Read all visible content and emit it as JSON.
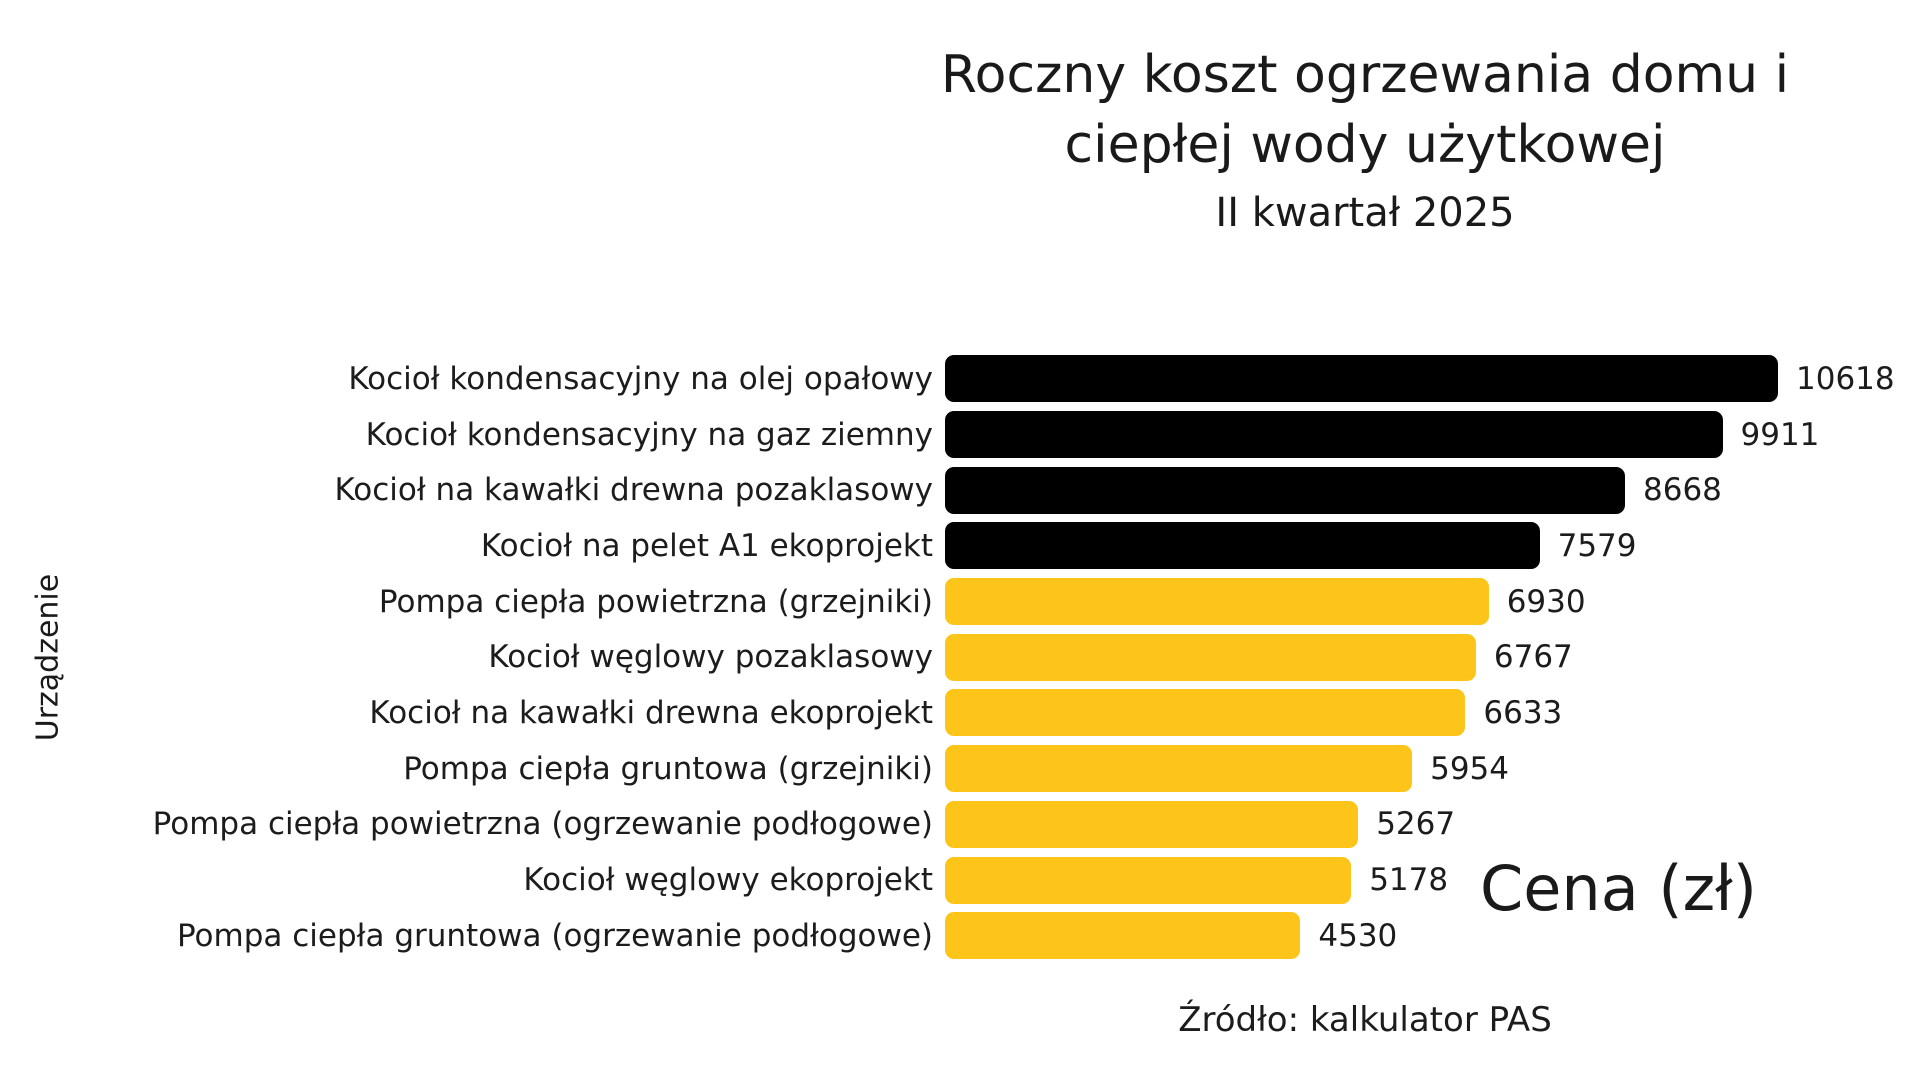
{
  "header": {
    "title_line1": "Roczny koszt ogrzewania domu i",
    "title_line2": "ciepłej wody użytkowej",
    "subtitle": "II kwartał 2025"
  },
  "chart_data": {
    "type": "bar",
    "orientation": "horizontal",
    "title": "Roczny koszt ogrzewania domu i ciepłej wody użytkowej",
    "subtitle": "II kwartał 2025",
    "xlabel": "Cena (zł)",
    "ylabel": "Urządzenie",
    "source": "Źródło: kalkulator PAS",
    "xlim": [
      0,
      10618
    ],
    "grid": false,
    "legend": false,
    "bar_colors": {
      "dark": "#000000",
      "yellow": "#fdc51a"
    },
    "items": [
      {
        "label": "Kocioł kondensacyjny na olej opałowy",
        "value": 10618,
        "color": "#000000"
      },
      {
        "label": "Kocioł kondensacyjny na gaz ziemny",
        "value": 9911,
        "color": "#000000"
      },
      {
        "label": "Kocioł na kawałki drewna pozaklasowy",
        "value": 8668,
        "color": "#000000"
      },
      {
        "label": "Kocioł na pelet A1 ekoprojekt",
        "value": 7579,
        "color": "#000000"
      },
      {
        "label": "Pompa ciepła powietrzna (grzejniki)",
        "value": 6930,
        "color": "#fdc51a"
      },
      {
        "label": "Kocioł węglowy pozaklasowy",
        "value": 6767,
        "color": "#fdc51a"
      },
      {
        "label": "Kocioł na kawałki drewna ekoprojekt",
        "value": 6633,
        "color": "#fdc51a"
      },
      {
        "label": "Pompa ciepła gruntowa (grzejniki)",
        "value": 5954,
        "color": "#fdc51a"
      },
      {
        "label": "Pompa ciepła powietrzna (ogrzewanie podłogowe)",
        "value": 5267,
        "color": "#fdc51a"
      },
      {
        "label": "Kocioł węglowy ekoprojekt",
        "value": 5178,
        "color": "#fdc51a"
      },
      {
        "label": "Pompa ciepła gruntowa (ogrzewanie podłogowe)",
        "value": 4530,
        "color": "#fdc51a"
      }
    ]
  }
}
